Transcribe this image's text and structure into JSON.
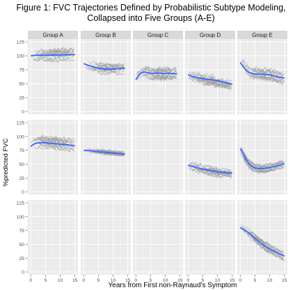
{
  "title_line1": "Figure 1: FVC Trajectories Defined by Probabilistic Subtype Modeling,",
  "title_line2": "Collapsed into Five Groups (A-E)",
  "chart_data": {
    "type": "line",
    "title": "Figure 1: FVC Trajectories Defined by Probabilistic Subtype Modeling, Collapsed into Five Groups (A-E)",
    "xlabel": "Years from First non-Raynaud's Symptom",
    "ylabel": "%predicted FVC",
    "xlim": [
      -1,
      16
    ],
    "ylim": [
      -5,
      130
    ],
    "x_ticks": [
      0,
      5,
      10,
      15
    ],
    "y_ticks": [
      0,
      25,
      50,
      75,
      100,
      125
    ],
    "x_tick_labels": [
      "0",
      "5",
      "10",
      "15"
    ],
    "y_tick_labels": [
      "0",
      "25",
      "50",
      "75",
      "100",
      "125"
    ],
    "grid": true,
    "columns": [
      "Group A",
      "Group B",
      "Group C",
      "Group D",
      "Group E"
    ],
    "panel_rows": 3,
    "colors": {
      "panel_bg": "#ebebeb",
      "grid_major": "#ffffff",
      "grid_minor": "#f5f5f5",
      "strip_bg": "#d9d9d9",
      "trajectory": "#9e9e9e",
      "smooth": "#3366ff"
    },
    "panels": [
      {
        "row": 0,
        "col": 0,
        "x_range": [
          0,
          15
        ],
        "spread": 10,
        "smooth": [
          [
            0,
            100
          ],
          [
            2,
            101
          ],
          [
            4,
            101
          ],
          [
            6,
            101
          ],
          [
            8,
            101.5
          ],
          [
            10,
            101.5
          ],
          [
            12,
            101.5
          ],
          [
            14,
            102
          ],
          [
            15,
            102
          ]
        ]
      },
      {
        "row": 0,
        "col": 1,
        "x_range": [
          0,
          14
        ],
        "spread": 8,
        "smooth": [
          [
            0,
            86
          ],
          [
            2,
            82
          ],
          [
            4,
            79
          ],
          [
            6,
            77
          ],
          [
            8,
            76
          ],
          [
            10,
            76
          ],
          [
            12,
            77
          ],
          [
            14,
            78
          ]
        ]
      },
      {
        "row": 0,
        "col": 2,
        "x_range": [
          0,
          14
        ],
        "spread": 10,
        "smooth": [
          [
            0,
            57
          ],
          [
            1,
            66
          ],
          [
            2,
            70
          ],
          [
            3,
            71
          ],
          [
            4,
            70
          ],
          [
            5,
            68
          ],
          [
            6,
            68
          ],
          [
            7,
            69
          ],
          [
            8,
            69
          ],
          [
            9,
            68
          ],
          [
            10,
            68
          ],
          [
            11,
            69
          ],
          [
            12,
            68
          ],
          [
            14,
            68
          ]
        ]
      },
      {
        "row": 0,
        "col": 3,
        "x_range": [
          0,
          15
        ],
        "spread": 9,
        "smooth": [
          [
            0,
            66
          ],
          [
            2,
            62
          ],
          [
            4,
            60
          ],
          [
            6,
            58
          ],
          [
            8,
            57
          ],
          [
            10,
            55
          ],
          [
            12,
            53
          ],
          [
            14,
            50
          ],
          [
            15,
            49
          ]
        ]
      },
      {
        "row": 0,
        "col": 4,
        "x_range": [
          0,
          15
        ],
        "spread": 9,
        "smooth": [
          [
            0,
            88
          ],
          [
            1,
            81
          ],
          [
            2,
            74
          ],
          [
            3,
            70
          ],
          [
            4,
            68
          ],
          [
            6,
            67
          ],
          [
            8,
            67
          ],
          [
            10,
            66
          ],
          [
            12,
            63
          ],
          [
            14,
            61
          ],
          [
            15,
            60
          ]
        ]
      },
      {
        "row": 1,
        "col": 0,
        "x_range": [
          0,
          15
        ],
        "spread": 10,
        "smooth": [
          [
            0,
            82
          ],
          [
            1,
            86
          ],
          [
            2,
            88
          ],
          [
            4,
            89
          ],
          [
            6,
            88
          ],
          [
            8,
            87
          ],
          [
            10,
            86
          ],
          [
            12,
            85
          ],
          [
            14,
            84
          ],
          [
            15,
            83
          ]
        ]
      },
      {
        "row": 1,
        "col": 1,
        "x_range": [
          0,
          14
        ],
        "spread": 4,
        "smooth": [
          [
            0,
            75
          ],
          [
            2,
            74
          ],
          [
            4,
            73
          ],
          [
            6,
            72
          ],
          [
            8,
            71
          ],
          [
            10,
            70
          ],
          [
            12,
            69
          ],
          [
            14,
            68
          ]
        ]
      },
      {
        "row": 1,
        "col": 3,
        "x_range": [
          0,
          15
        ],
        "spread": 8,
        "smooth": [
          [
            0,
            48
          ],
          [
            2,
            45
          ],
          [
            4,
            42
          ],
          [
            6,
            40
          ],
          [
            8,
            38
          ],
          [
            10,
            36
          ],
          [
            12,
            35
          ],
          [
            14,
            34
          ],
          [
            15,
            34
          ]
        ]
      },
      {
        "row": 1,
        "col": 4,
        "x_range": [
          0,
          15
        ],
        "spread": 7,
        "smooth": [
          [
            0,
            78
          ],
          [
            1,
            68
          ],
          [
            2,
            58
          ],
          [
            3,
            50
          ],
          [
            4,
            46
          ],
          [
            5,
            43
          ],
          [
            6,
            42
          ],
          [
            8,
            42
          ],
          [
            10,
            44
          ],
          [
            12,
            46
          ],
          [
            14,
            49
          ],
          [
            15,
            51
          ]
        ]
      },
      {
        "row": 2,
        "col": 4,
        "x_range": [
          0,
          15
        ],
        "spread": 7,
        "smooth": [
          [
            0,
            80
          ],
          [
            1,
            77
          ],
          [
            2,
            74
          ],
          [
            3,
            70
          ],
          [
            4,
            66
          ],
          [
            5,
            61
          ],
          [
            6,
            56
          ],
          [
            8,
            48
          ],
          [
            10,
            41
          ],
          [
            12,
            36
          ],
          [
            14,
            31
          ],
          [
            15,
            29
          ]
        ]
      }
    ]
  }
}
